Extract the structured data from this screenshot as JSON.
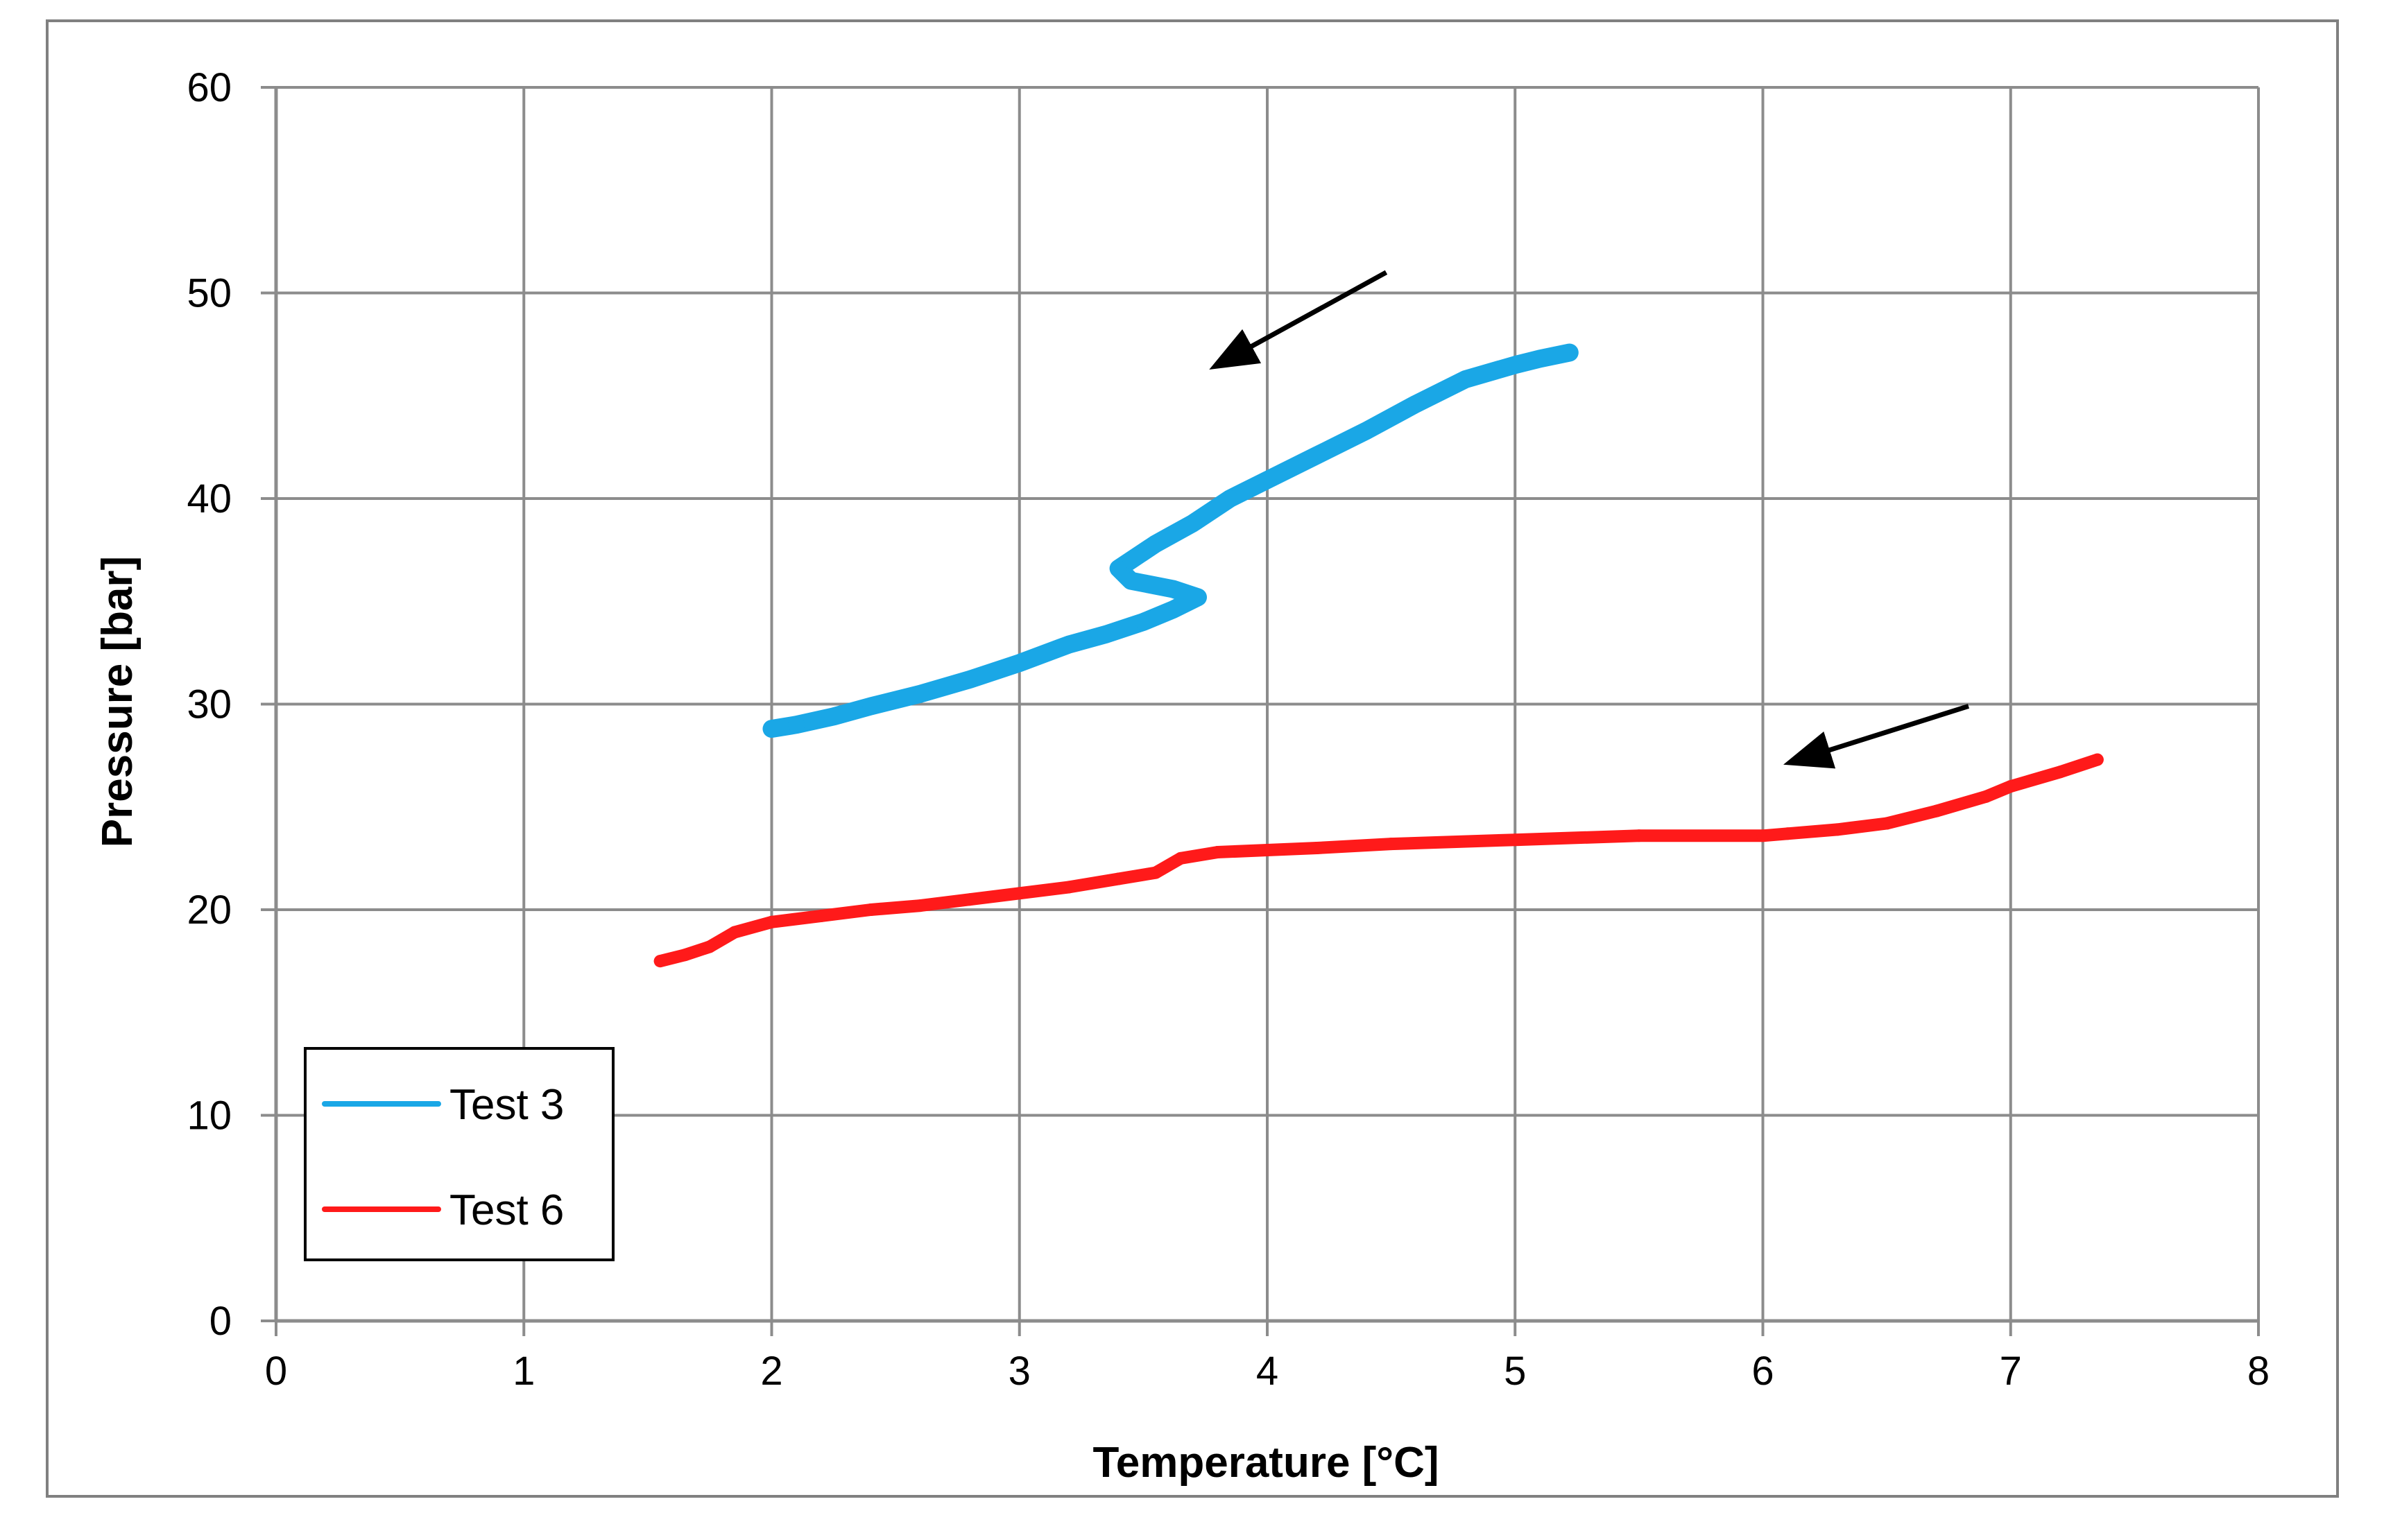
{
  "chart_data": {
    "type": "line",
    "title": "",
    "xlabel": "Temperature [°C]",
    "ylabel": "Pressure [bar]",
    "xlim": [
      0,
      8
    ],
    "ylim": [
      0,
      60
    ],
    "xticks": [
      0,
      1,
      2,
      3,
      4,
      5,
      6,
      7,
      8
    ],
    "yticks": [
      0,
      10,
      20,
      30,
      40,
      50,
      60
    ],
    "grid": true,
    "legend_position": "bottom-left",
    "series": [
      {
        "name": "Test 3",
        "color": "#1aa7e6",
        "x": [
          5.22,
          5.1,
          5.0,
          4.8,
          4.6,
          4.4,
          4.2,
          4.0,
          3.85,
          3.7,
          3.55,
          3.45,
          3.4,
          3.45,
          3.62,
          3.72,
          3.62,
          3.5,
          3.35,
          3.2,
          3.0,
          2.8,
          2.6,
          2.4,
          2.25,
          2.1,
          2.0
        ],
        "y": [
          47.1,
          46.8,
          46.5,
          45.8,
          44.6,
          43.3,
          42.1,
          40.9,
          40.0,
          38.8,
          37.8,
          37.0,
          36.6,
          36.0,
          35.6,
          35.2,
          34.6,
          34.0,
          33.4,
          32.9,
          32.0,
          31.2,
          30.5,
          29.9,
          29.4,
          29.0,
          28.8
        ]
      },
      {
        "name": "Test 6",
        "color": "#ff1a1a",
        "x": [
          7.35,
          7.2,
          7.0,
          6.9,
          6.7,
          6.5,
          6.3,
          6.1,
          6.0,
          5.5,
          5.0,
          4.5,
          4.2,
          4.0,
          3.8,
          3.65,
          3.55,
          3.4,
          3.2,
          3.0,
          2.8,
          2.6,
          2.4,
          2.2,
          2.0,
          1.85,
          1.75,
          1.65,
          1.55
        ],
        "y": [
          27.3,
          26.7,
          26.0,
          25.5,
          24.8,
          24.2,
          23.9,
          23.7,
          23.6,
          23.6,
          23.4,
          23.2,
          23.0,
          22.9,
          22.8,
          22.5,
          21.8,
          21.5,
          21.1,
          20.8,
          20.5,
          20.2,
          20.0,
          19.7,
          19.4,
          18.9,
          18.2,
          17.8,
          17.5
        ]
      }
    ],
    "annotations": [
      {
        "type": "arrow",
        "from": [
          4.48,
          51.0
        ],
        "to": [
          3.8,
          46.5
        ],
        "color": "#000000"
      },
      {
        "type": "arrow",
        "from": [
          6.83,
          29.9
        ],
        "to": [
          6.12,
          27.2
        ],
        "color": "#000000"
      }
    ]
  }
}
